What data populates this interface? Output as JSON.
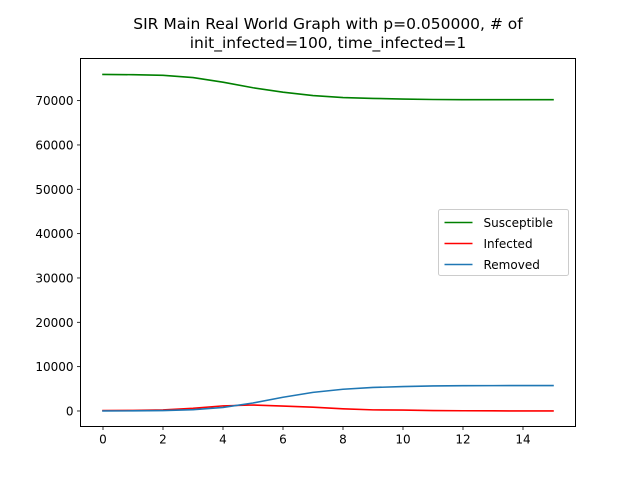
{
  "chart_data": {
    "type": "line",
    "title_lines": [
      "SIR Main Real World Graph with p=0.050000, # of",
      "init_infected=100, time_infected=1"
    ],
    "xlabel": "",
    "ylabel": "",
    "x": [
      0,
      1,
      2,
      3,
      4,
      5,
      6,
      7,
      8,
      9,
      10,
      11,
      12,
      13,
      14,
      15
    ],
    "xlim": [
      -0.75,
      15.75
    ],
    "ylim": [
      -3500,
      79500
    ],
    "xticks": [
      0,
      2,
      4,
      6,
      8,
      10,
      12,
      14
    ],
    "yticks": [
      0,
      10000,
      20000,
      30000,
      40000,
      50000,
      60000,
      70000
    ],
    "grid": false,
    "legend_position": "center-right",
    "series": [
      {
        "name": "Susceptible",
        "color": "#008000",
        "values": [
          75900,
          75850,
          75700,
          75200,
          74150,
          72900,
          71900,
          71150,
          70700,
          70500,
          70350,
          70250,
          70200,
          70200,
          70200,
          70200
        ]
      },
      {
        "name": "Infected",
        "color": "#ff0000",
        "values": [
          100,
          120,
          230,
          600,
          1150,
          1350,
          1100,
          850,
          500,
          250,
          200,
          100,
          50,
          30,
          10,
          0
        ]
      },
      {
        "name": "Removed",
        "color": "#1f77b4",
        "values": [
          0,
          30,
          100,
          300,
          800,
          1800,
          3100,
          4200,
          4900,
          5300,
          5500,
          5650,
          5700,
          5720,
          5730,
          5730
        ]
      }
    ]
  }
}
